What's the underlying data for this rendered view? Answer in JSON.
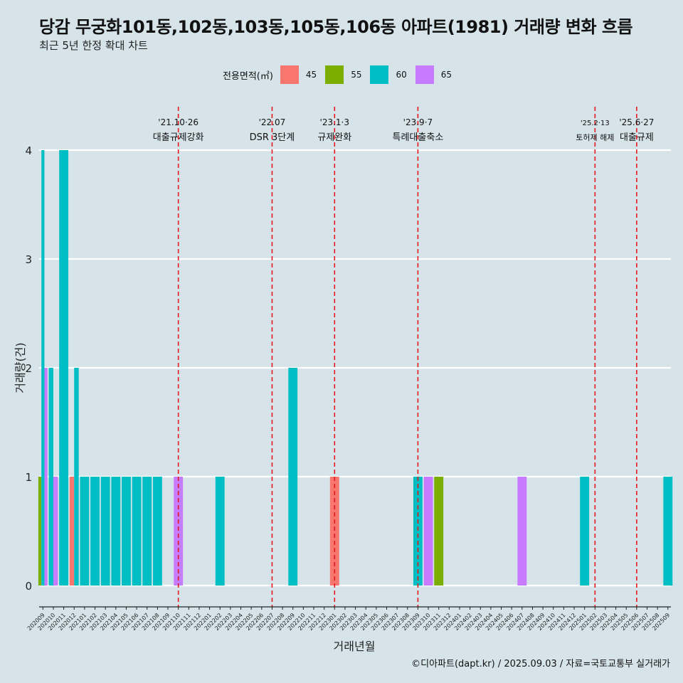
{
  "title": "당감 무궁화101동,102동,103동,105동,106동 아파트(1981) 거래량 변화 흐름",
  "subtitle": "최근 5년 한정 확대 차트",
  "caption": "©디아파트(dapt.kr) / 2025.09.03 / 자료=국토교통부 실거래가",
  "legend": {
    "title": "전용면적(㎡)",
    "items": [
      {
        "label": "45",
        "color": "#F8766D"
      },
      {
        "label": "55",
        "color": "#7CAE00"
      },
      {
        "label": "60",
        "color": "#00BFC4"
      },
      {
        "label": "65",
        "color": "#C77CFF"
      }
    ]
  },
  "chart_data": {
    "type": "bar",
    "xlabel": "거래년월",
    "ylabel": "거래량(건)",
    "ylim": [
      0,
      4
    ],
    "yticks": [
      0,
      1,
      2,
      3,
      4
    ],
    "grid": true,
    "categories": [
      "202009",
      "202010",
      "202011",
      "202012",
      "202101",
      "202102",
      "202103",
      "202104",
      "202105",
      "202106",
      "202107",
      "202108",
      "202109",
      "202110",
      "202111",
      "202112",
      "202201",
      "202202",
      "202203",
      "202204",
      "202205",
      "202206",
      "202207",
      "202208",
      "202209",
      "202210",
      "202211",
      "202212",
      "202301",
      "202302",
      "202303",
      "202304",
      "202305",
      "202306",
      "202307",
      "202308",
      "202309",
      "202310",
      "202311",
      "202312",
      "202401",
      "202402",
      "202403",
      "202404",
      "202405",
      "202406",
      "202407",
      "202408",
      "202409",
      "202410",
      "202411",
      "202412",
      "202501",
      "202502",
      "202503",
      "202504",
      "202505",
      "202506",
      "202507",
      "202508",
      "202509"
    ],
    "bars": [
      {
        "month": "202009",
        "values": [
          {
            "area": "55",
            "count": 1
          },
          {
            "area": "60",
            "count": 4
          },
          {
            "area": "65",
            "count": 2
          }
        ]
      },
      {
        "month": "202010",
        "values": [
          {
            "area": "60",
            "count": 2
          },
          {
            "area": "65",
            "count": 1
          }
        ]
      },
      {
        "month": "202011",
        "values": [
          {
            "area": "60",
            "count": 4
          }
        ]
      },
      {
        "month": "202012",
        "values": [
          {
            "area": "45",
            "count": 1
          },
          {
            "area": "60",
            "count": 2
          }
        ]
      },
      {
        "month": "202101",
        "values": [
          {
            "area": "60",
            "count": 1
          }
        ]
      },
      {
        "month": "202102",
        "values": [
          {
            "area": "60",
            "count": 1
          }
        ]
      },
      {
        "month": "202103",
        "values": [
          {
            "area": "60",
            "count": 1
          }
        ]
      },
      {
        "month": "202104",
        "values": [
          {
            "area": "60",
            "count": 1
          }
        ]
      },
      {
        "month": "202105",
        "values": [
          {
            "area": "60",
            "count": 1
          }
        ]
      },
      {
        "month": "202106",
        "values": [
          {
            "area": "60",
            "count": 1
          }
        ]
      },
      {
        "month": "202107",
        "values": [
          {
            "area": "60",
            "count": 1
          }
        ]
      },
      {
        "month": "202108",
        "values": [
          {
            "area": "60",
            "count": 1
          }
        ]
      },
      {
        "month": "202110",
        "values": [
          {
            "area": "65",
            "count": 1
          }
        ]
      },
      {
        "month": "202202",
        "values": [
          {
            "area": "60",
            "count": 1
          }
        ]
      },
      {
        "month": "202209",
        "values": [
          {
            "area": "60",
            "count": 2
          }
        ]
      },
      {
        "month": "202301",
        "values": [
          {
            "area": "45",
            "count": 1
          }
        ]
      },
      {
        "month": "202309",
        "values": [
          {
            "area": "60",
            "count": 1
          }
        ]
      },
      {
        "month": "202310",
        "values": [
          {
            "area": "65",
            "count": 1
          }
        ]
      },
      {
        "month": "202311",
        "values": [
          {
            "area": "55",
            "count": 1
          }
        ]
      },
      {
        "month": "202407",
        "values": [
          {
            "area": "65",
            "count": 1
          }
        ]
      },
      {
        "month": "202501",
        "values": [
          {
            "area": "60",
            "count": 1
          }
        ]
      },
      {
        "month": "202509",
        "values": [
          {
            "area": "60",
            "count": 1
          }
        ]
      }
    ],
    "annotations": [
      {
        "month": "202110",
        "date": "'21.10·26",
        "label": "대출규제강화",
        "size": "normal"
      },
      {
        "month": "202207",
        "date": "'22.07",
        "label": "DSR 3단계",
        "size": "normal"
      },
      {
        "month": "202301",
        "date": "'23.1·3",
        "label": "규제완화",
        "size": "normal"
      },
      {
        "month": "202309",
        "date": "'23.9·7",
        "label": "특례대출축소",
        "size": "normal"
      },
      {
        "month": "202502",
        "date": "'25.2·13",
        "label": "토허제 해제",
        "size": "small"
      },
      {
        "month": "202506",
        "date": "'25.6·27",
        "label": "대출규제",
        "size": "normal"
      }
    ]
  }
}
